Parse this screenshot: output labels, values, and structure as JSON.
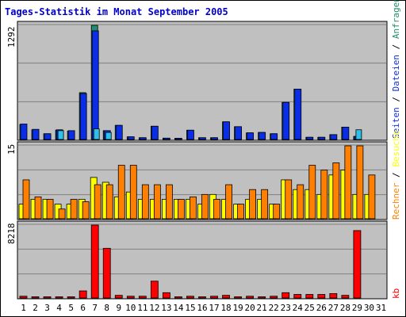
{
  "chart_data": {
    "type": "bar",
    "title": "Tages-Statistik im Monat September 2005",
    "colors": {
      "anfragen": "#1f8f6e",
      "dateien": "#0a2ee8",
      "seiten": "#2ec0e8",
      "besuche": "#ffff00",
      "rechner": "#ff8000",
      "kb": "#ff0000",
      "weekday": "#000000",
      "weekend": "#008040",
      "panel_bg": "#c0c0c0",
      "grid": "#808080"
    },
    "days": [
      "1",
      "2",
      "3",
      "4",
      "5",
      "6",
      "7",
      "8",
      "9",
      "10",
      "11",
      "12",
      "13",
      "14",
      "15",
      "16",
      "17",
      "18",
      "19",
      "20",
      "21",
      "22",
      "23",
      "24",
      "25",
      "26",
      "27",
      "28",
      "29",
      "30",
      "31"
    ],
    "weekend_days": [
      "3",
      "4",
      "10",
      "11",
      "17",
      "18",
      "24",
      "25",
      "31"
    ],
    "top": {
      "ymax": 1292,
      "ymax_label": "1292",
      "series_labels": {
        "anfragen": "Anfragen",
        "dateien": "Dateien",
        "seiten": "Seiten"
      },
      "anfragen": [
        170,
        110,
        65,
        105,
        95,
        530,
        1292,
        100,
        160,
        30,
        20,
        150,
        15,
        10,
        105,
        20,
        20,
        200,
        145,
        75,
        80,
        65,
        420,
        570,
        25,
        25,
        55,
        140,
        35,
        0,
        0
      ],
      "dateien": [
        175,
        115,
        65,
        110,
        100,
        520,
        1230,
        100,
        160,
        30,
        20,
        150,
        15,
        10,
        105,
        20,
        20,
        200,
        145,
        75,
        80,
        65,
        420,
        570,
        25,
        25,
        55,
        140,
        35,
        0,
        0
      ],
      "seiten": [
        0,
        0,
        0,
        100,
        0,
        0,
        120,
        80,
        0,
        0,
        0,
        0,
        0,
        0,
        0,
        0,
        0,
        0,
        0,
        0,
        0,
        0,
        0,
        0,
        0,
        0,
        0,
        0,
        110,
        0,
        0
      ]
    },
    "middle": {
      "ymax": 15,
      "ymax_label": "15",
      "series_labels": {
        "besuche": "Besuche",
        "rechner": "Rechner"
      },
      "besuche": [
        3,
        4,
        4,
        3,
        3,
        4,
        8.5,
        7.5,
        4.5,
        5.5,
        4,
        4,
        4,
        4,
        4,
        3,
        5,
        4,
        3,
        4,
        4,
        3,
        8,
        6,
        6,
        5,
        9,
        10,
        5,
        5,
        0
      ],
      "rechner": [
        8,
        4.5,
        4,
        2,
        4,
        3.5,
        7,
        7,
        11,
        11,
        7,
        7,
        7,
        4,
        4.5,
        5,
        4,
        7,
        3,
        6,
        6,
        3,
        8,
        7,
        11,
        10,
        11.5,
        15,
        15,
        9,
        0
      ]
    },
    "bottom": {
      "ymax": 8218,
      "ymax_label": "8218",
      "series_labels": {
        "kb": "kb"
      },
      "kb": [
        200,
        100,
        100,
        100,
        100,
        800,
        8218,
        5600,
        300,
        200,
        200,
        1900,
        600,
        100,
        200,
        100,
        200,
        300,
        100,
        200,
        100,
        200,
        600,
        400,
        400,
        400,
        500,
        300,
        7600,
        0,
        0
      ]
    }
  }
}
